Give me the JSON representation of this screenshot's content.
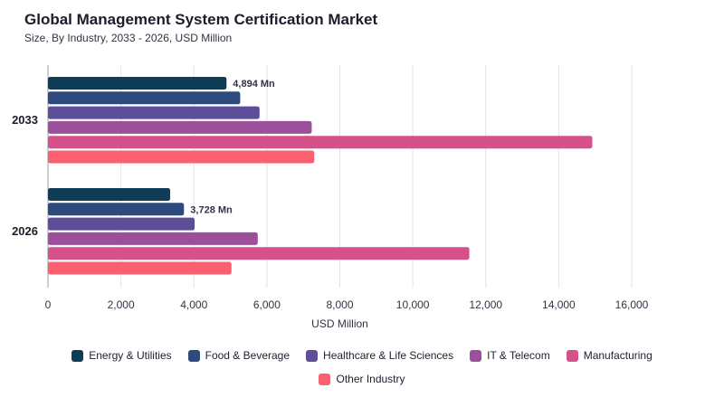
{
  "chart_data": {
    "type": "bar",
    "orientation": "horizontal",
    "title": "Global Management System Certification Market",
    "subtitle": "Size, By Industry, 2033 - 2026, USD Million",
    "categories": [
      "2033",
      "2026"
    ],
    "xlabel": "USD Million",
    "ylabel": "",
    "xlim": [
      0,
      16000
    ],
    "xticks": [
      "0",
      "2,000",
      "4,000",
      "6,000",
      "8,000",
      "10,000",
      "12,000",
      "14,000",
      "16,000"
    ],
    "grid": "vertical",
    "legend_position": "bottom",
    "series": [
      {
        "name": "Energy & Utilities",
        "color": "#0f3d57",
        "values": [
          4894,
          3350
        ]
      },
      {
        "name": "Food & Beverage",
        "color": "#2e4a7d",
        "values": [
          5270,
          3728
        ]
      },
      {
        "name": "Healthcare & Life Sciences",
        "color": "#5e4e9a",
        "values": [
          5800,
          4020
        ]
      },
      {
        "name": "IT & Telecom",
        "color": "#9c509a",
        "values": [
          7230,
          5750
        ]
      },
      {
        "name": "Manufacturing",
        "color": "#d6508a",
        "values": [
          14920,
          11550
        ]
      },
      {
        "name": "Other Industry",
        "color": "#fb6070",
        "values": [
          7300,
          5030
        ]
      }
    ],
    "annotations": [
      {
        "category": "2033",
        "series": "Energy & Utilities",
        "text": "4,894 Mn"
      },
      {
        "category": "2026",
        "series": "Food & Beverage",
        "text": "3,728 Mn"
      }
    ]
  }
}
